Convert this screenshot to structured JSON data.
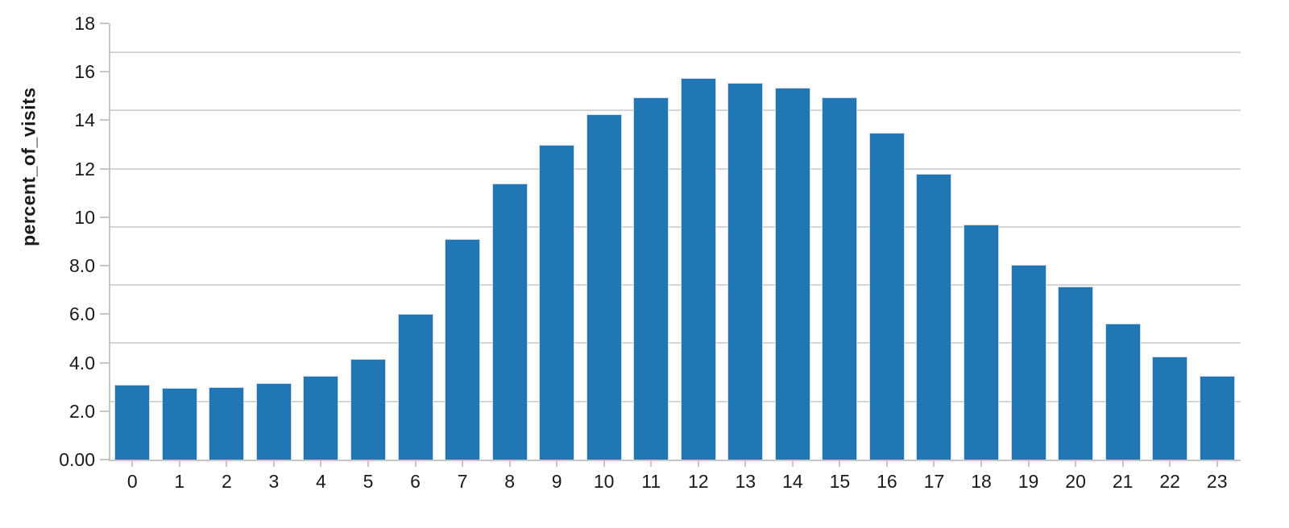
{
  "chart_data": {
    "type": "bar",
    "title": "",
    "xlabel": "",
    "ylabel": "percent_of_visits",
    "categories": [
      "0",
      "1",
      "2",
      "3",
      "4",
      "5",
      "6",
      "7",
      "8",
      "9",
      "10",
      "11",
      "12",
      "13",
      "14",
      "15",
      "16",
      "17",
      "18",
      "19",
      "20",
      "21",
      "22",
      "23"
    ],
    "values": [
      3.1,
      2.95,
      3.0,
      3.15,
      3.45,
      4.15,
      6.0,
      9.1,
      11.4,
      13.0,
      14.25,
      14.95,
      15.75,
      15.55,
      15.35,
      14.95,
      13.5,
      11.8,
      9.7,
      8.05,
      7.15,
      5.6,
      4.25,
      3.45
    ],
    "ylim": [
      0,
      18
    ],
    "y_tick_values": [
      0,
      2,
      4,
      6,
      8,
      10,
      12,
      14,
      16,
      18
    ],
    "y_tick_labels": [
      "0.00",
      "2.0",
      "4.0",
      "6.0",
      "8.0",
      "10",
      "12",
      "14",
      "16",
      "18"
    ],
    "gridline_values": [
      2.4,
      4.8,
      7.2,
      9.6,
      12,
      14.4,
      16.8
    ],
    "grid": "horizontal",
    "legend": "none",
    "colors": {
      "bar_fill": "#2176b4",
      "bar_stroke": "#ccd9e4",
      "gridline": "#d5d5d5",
      "axis_line": "#c6c6c6",
      "tick": "#c6c6c6",
      "label_text": "#1a1a1a"
    }
  }
}
